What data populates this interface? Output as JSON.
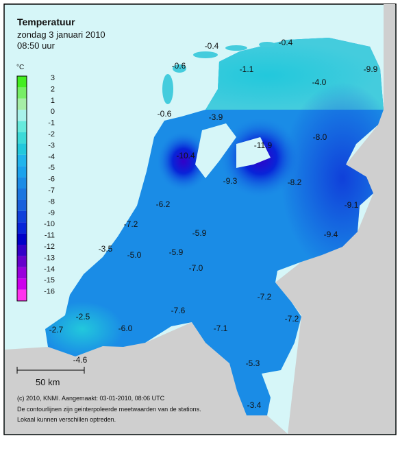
{
  "header": {
    "title": "Temperatuur",
    "date": "zondag 3 januari 2010",
    "time": "08:50 uur"
  },
  "legend": {
    "unit": "°C",
    "levels": [
      {
        "value": 3,
        "color": "#44ee22"
      },
      {
        "value": 2,
        "color": "#77ee66"
      },
      {
        "value": 1,
        "color": "#a6eea6"
      },
      {
        "value": 0,
        "color": "#a8f2ea"
      },
      {
        "value": -1,
        "color": "#66eadc"
      },
      {
        "value": -2,
        "color": "#3cdad8"
      },
      {
        "value": -3,
        "color": "#22c8dc"
      },
      {
        "value": -4,
        "color": "#20b4ec"
      },
      {
        "value": -5,
        "color": "#1aa2ec"
      },
      {
        "value": -6,
        "color": "#1a8ce6"
      },
      {
        "value": -7,
        "color": "#1a76e0"
      },
      {
        "value": -8,
        "color": "#1860dc"
      },
      {
        "value": -9,
        "color": "#1040da"
      },
      {
        "value": -10,
        "color": "#0824d8"
      },
      {
        "value": -11,
        "color": "#0000c8"
      },
      {
        "value": -12,
        "color": "#3300c8"
      },
      {
        "value": -13,
        "color": "#6600cc"
      },
      {
        "value": -14,
        "color": "#9900dc"
      },
      {
        "value": -15,
        "color": "#cc00ec"
      },
      {
        "value": -16,
        "color": "#ff33ee"
      }
    ]
  },
  "stations": [
    "-0.4",
    "-0.4",
    "-0.6",
    "-1.1",
    "-9.9",
    "-4.0",
    "-0.6",
    "-3.9",
    "-8.0",
    "-11.9",
    "-10.4",
    "-9.3",
    "-8.2",
    "-6.2",
    "-9.1",
    "-7.2",
    "-5.9",
    "-9.4",
    "-3.5",
    "-5.0",
    "-5.9",
    "-7.0",
    "-7.2",
    "-7.6",
    "-7.2",
    "-2.5",
    "-2.7",
    "-6.0",
    "-7.1",
    "-4.6",
    "-5.3",
    "-3.4"
  ],
  "scalebar": "50 km",
  "footer": [
    "(c) 2010, KNMI. Aangemaakt: 03-01-2010, 08:06 UTC",
    "De contourlijnen zijn geinterpoleerde meetwaarden van de stations.",
    "Lokaal kunnen verschillen optreden."
  ]
}
